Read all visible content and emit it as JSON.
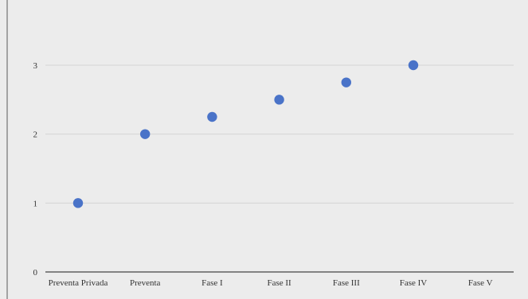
{
  "chart_data": {
    "type": "scatter",
    "title": "",
    "xlabel": "",
    "ylabel": "",
    "categories": [
      "Preventa Privada",
      "Preventa",
      "Fase I",
      "Fase II",
      "Fase III",
      "Fase IV",
      "Fase V"
    ],
    "y_ticks": [
      0,
      1,
      2,
      3
    ],
    "ylim": [
      0,
      3.5
    ],
    "grid": true,
    "legend": "none",
    "point_color": "#4a73c8",
    "grid_color": "#d4d4d4",
    "series": [
      {
        "points": [
          {
            "x": "Preventa Privada",
            "y": 1
          },
          {
            "x": "Preventa",
            "y": 2
          },
          {
            "x": "Fase I",
            "y": 2.25
          },
          {
            "x": "Fase II",
            "y": 2.5
          },
          {
            "x": "Fase III",
            "y": 2.75
          },
          {
            "x": "Fase IV",
            "y": 3
          }
        ]
      }
    ]
  }
}
